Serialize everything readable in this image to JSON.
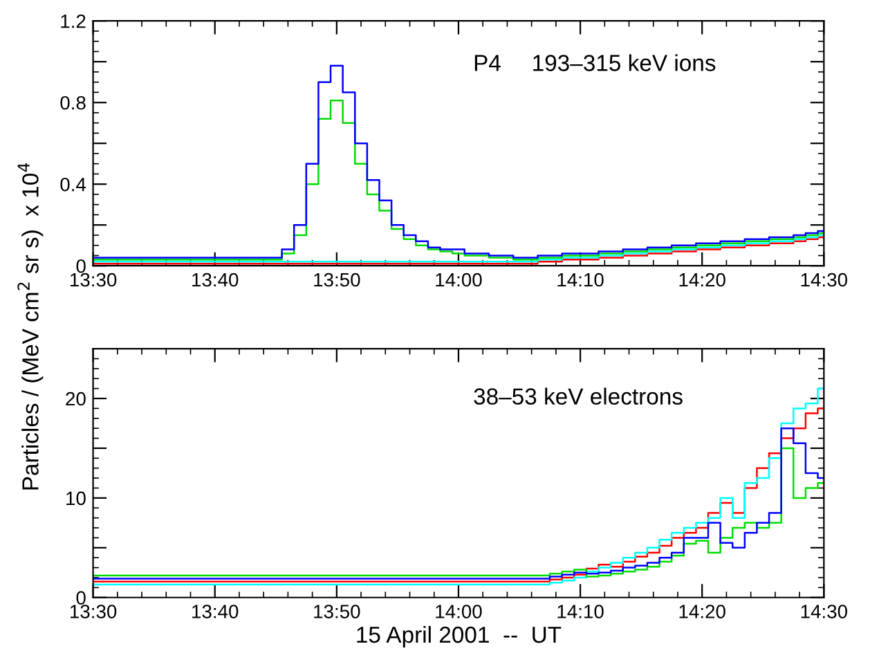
{
  "chart_data": [
    {
      "type": "step",
      "ylabel": "Particles / (MeV cm$^{2}$ sr s)  x 10$^{4}$",
      "annotations": [
        "P4",
        "193–315 keV ions"
      ],
      "x": [
        "2001-04-15T13:30",
        "2001-04-15T13:31",
        "2001-04-15T13:32",
        "2001-04-15T13:33",
        "2001-04-15T13:34",
        "2001-04-15T13:35",
        "2001-04-15T13:36",
        "2001-04-15T13:37",
        "2001-04-15T13:38",
        "2001-04-15T13:39",
        "2001-04-15T13:40",
        "2001-04-15T13:41",
        "2001-04-15T13:42",
        "2001-04-15T13:43",
        "2001-04-15T13:44",
        "2001-04-15T13:45",
        "2001-04-15T13:46",
        "2001-04-15T13:47",
        "2001-04-15T13:48",
        "2001-04-15T13:49",
        "2001-04-15T13:50",
        "2001-04-15T13:51",
        "2001-04-15T13:52",
        "2001-04-15T13:53",
        "2001-04-15T13:54",
        "2001-04-15T13:55",
        "2001-04-15T13:56",
        "2001-04-15T13:57",
        "2001-04-15T13:58",
        "2001-04-15T13:59",
        "2001-04-15T14:00",
        "2001-04-15T14:01",
        "2001-04-15T14:02",
        "2001-04-15T14:03",
        "2001-04-15T14:04",
        "2001-04-15T14:05",
        "2001-04-15T14:06",
        "2001-04-15T14:07",
        "2001-04-15T14:08",
        "2001-04-15T14:09",
        "2001-04-15T14:10",
        "2001-04-15T14:11",
        "2001-04-15T14:12",
        "2001-04-15T14:13",
        "2001-04-15T14:14",
        "2001-04-15T14:15",
        "2001-04-15T14:16",
        "2001-04-15T14:17",
        "2001-04-15T14:18",
        "2001-04-15T14:19",
        "2001-04-15T14:20",
        "2001-04-15T14:21",
        "2001-04-15T14:22",
        "2001-04-15T14:23",
        "2001-04-15T14:24",
        "2001-04-15T14:25",
        "2001-04-15T14:26",
        "2001-04-15T14:27",
        "2001-04-15T14:28",
        "2001-04-15T14:29",
        "2001-04-15T14:30"
      ],
      "series": [
        {
          "color": "#ff0000",
          "values": [
            0.01,
            0.01,
            0.01,
            0.01,
            0.01,
            0.01,
            0.01,
            0.01,
            0.01,
            0.01,
            0.01,
            0.01,
            0.01,
            0.01,
            0.01,
            0.01,
            0.01,
            0.01,
            0.01,
            0.01,
            0.01,
            0.01,
            0.01,
            0.01,
            0.01,
            0.01,
            0.01,
            0.01,
            0.01,
            0.01,
            0.01,
            0.01,
            0.01,
            0.01,
            0.01,
            0.01,
            0.01,
            0.02,
            0.02,
            0.03,
            0.03,
            0.03,
            0.04,
            0.04,
            0.05,
            0.05,
            0.06,
            0.06,
            0.07,
            0.07,
            0.08,
            0.08,
            0.09,
            0.09,
            0.1,
            0.1,
            0.11,
            0.11,
            0.12,
            0.13,
            0.14
          ]
        },
        {
          "color": "#00ffff",
          "values": [
            0.02,
            0.02,
            0.02,
            0.02,
            0.02,
            0.02,
            0.02,
            0.02,
            0.02,
            0.02,
            0.02,
            0.02,
            0.02,
            0.02,
            0.02,
            0.02,
            0.02,
            0.02,
            0.02,
            0.02,
            0.02,
            0.02,
            0.02,
            0.02,
            0.02,
            0.02,
            0.02,
            0.02,
            0.02,
            0.02,
            0.02,
            0.02,
            0.02,
            0.02,
            0.02,
            0.02,
            0.02,
            0.03,
            0.03,
            0.04,
            0.04,
            0.04,
            0.05,
            0.05,
            0.06,
            0.06,
            0.07,
            0.07,
            0.08,
            0.08,
            0.09,
            0.09,
            0.1,
            0.1,
            0.11,
            0.11,
            0.12,
            0.12,
            0.13,
            0.14,
            0.15
          ]
        },
        {
          "color": "#00dd00",
          "values": [
            0.03,
            0.03,
            0.03,
            0.03,
            0.03,
            0.03,
            0.03,
            0.03,
            0.03,
            0.03,
            0.03,
            0.03,
            0.03,
            0.03,
            0.03,
            0.03,
            0.06,
            0.15,
            0.4,
            0.72,
            0.81,
            0.7,
            0.5,
            0.35,
            0.27,
            0.18,
            0.13,
            0.1,
            0.08,
            0.07,
            0.06,
            0.05,
            0.05,
            0.04,
            0.04,
            0.03,
            0.03,
            0.04,
            0.04,
            0.05,
            0.05,
            0.05,
            0.06,
            0.06,
            0.07,
            0.07,
            0.08,
            0.08,
            0.09,
            0.09,
            0.1,
            0.1,
            0.11,
            0.11,
            0.12,
            0.12,
            0.13,
            0.13,
            0.14,
            0.15,
            0.16
          ]
        },
        {
          "color": "#0000ff",
          "values": [
            0.04,
            0.04,
            0.04,
            0.04,
            0.04,
            0.04,
            0.04,
            0.04,
            0.04,
            0.04,
            0.04,
            0.04,
            0.04,
            0.04,
            0.04,
            0.04,
            0.08,
            0.2,
            0.5,
            0.9,
            0.98,
            0.85,
            0.6,
            0.42,
            0.32,
            0.2,
            0.15,
            0.12,
            0.09,
            0.08,
            0.08,
            0.06,
            0.06,
            0.05,
            0.05,
            0.04,
            0.04,
            0.05,
            0.05,
            0.06,
            0.06,
            0.06,
            0.07,
            0.07,
            0.08,
            0.08,
            0.09,
            0.09,
            0.1,
            0.1,
            0.11,
            0.11,
            0.12,
            0.12,
            0.13,
            0.13,
            0.14,
            0.14,
            0.15,
            0.16,
            0.17
          ]
        }
      ],
      "xlim": [
        "2001-04-15T13:30",
        "2001-04-15T14:30"
      ],
      "xticks": [
        {
          "value": "2001-04-15T13:30",
          "label": "13:30"
        },
        {
          "value": "2001-04-15T13:40",
          "label": "13:40"
        },
        {
          "value": "2001-04-15T13:50",
          "label": "13:50"
        },
        {
          "value": "2001-04-15T14:00",
          "label": "14:00"
        },
        {
          "value": "2001-04-15T14:10",
          "label": "14:10"
        },
        {
          "value": "2001-04-15T14:20",
          "label": "14:20"
        },
        {
          "value": "2001-04-15T14:30",
          "label": "14:30"
        }
      ],
      "ylim": [
        0,
        1.2
      ],
      "yticks": [
        0,
        {
          "value": 0.2,
          "label": null
        },
        0.4,
        {
          "value": 0.6,
          "label": null
        },
        0.8,
        {
          "value": 1.0,
          "label": null
        },
        1.2
      ],
      "grid": false,
      "legend": false
    },
    {
      "type": "step",
      "xlabel": "15 April 2001  --  UT",
      "annotations": [
        "38–53 keV electrons"
      ],
      "x": [
        "2001-04-15T13:30",
        "2001-04-15T13:31",
        "2001-04-15T13:32",
        "2001-04-15T13:33",
        "2001-04-15T13:34",
        "2001-04-15T13:35",
        "2001-04-15T13:36",
        "2001-04-15T13:37",
        "2001-04-15T13:38",
        "2001-04-15T13:39",
        "2001-04-15T13:40",
        "2001-04-15T13:41",
        "2001-04-15T13:42",
        "2001-04-15T13:43",
        "2001-04-15T13:44",
        "2001-04-15T13:45",
        "2001-04-15T13:46",
        "2001-04-15T13:47",
        "2001-04-15T13:48",
        "2001-04-15T13:49",
        "2001-04-15T13:50",
        "2001-04-15T13:51",
        "2001-04-15T13:52",
        "2001-04-15T13:53",
        "2001-04-15T13:54",
        "2001-04-15T13:55",
        "2001-04-15T13:56",
        "2001-04-15T13:57",
        "2001-04-15T13:58",
        "2001-04-15T13:59",
        "2001-04-15T14:00",
        "2001-04-15T14:01",
        "2001-04-15T14:02",
        "2001-04-15T14:03",
        "2001-04-15T14:04",
        "2001-04-15T14:05",
        "2001-04-15T14:06",
        "2001-04-15T14:07",
        "2001-04-15T14:08",
        "2001-04-15T14:09",
        "2001-04-15T14:10",
        "2001-04-15T14:11",
        "2001-04-15T14:12",
        "2001-04-15T14:13",
        "2001-04-15T14:14",
        "2001-04-15T14:15",
        "2001-04-15T14:16",
        "2001-04-15T14:17",
        "2001-04-15T14:18",
        "2001-04-15T14:19",
        "2001-04-15T14:20",
        "2001-04-15T14:21",
        "2001-04-15T14:22",
        "2001-04-15T14:23",
        "2001-04-15T14:24",
        "2001-04-15T14:25",
        "2001-04-15T14:26",
        "2001-04-15T14:27",
        "2001-04-15T14:28",
        "2001-04-15T14:29",
        "2001-04-15T14:30"
      ],
      "series": [
        {
          "color": "#ff0000",
          "values": [
            1.6,
            1.6,
            1.6,
            1.6,
            1.6,
            1.6,
            1.6,
            1.6,
            1.6,
            1.6,
            1.6,
            1.6,
            1.6,
            1.6,
            1.6,
            1.6,
            1.6,
            1.6,
            1.6,
            1.6,
            1.6,
            1.6,
            1.6,
            1.6,
            1.6,
            1.6,
            1.6,
            1.6,
            1.6,
            1.6,
            1.6,
            1.6,
            1.6,
            1.6,
            1.6,
            1.6,
            1.6,
            1.6,
            1.8,
            2.0,
            2.3,
            2.9,
            3.3,
            3.1,
            3.6,
            4.1,
            4.5,
            5.2,
            6.0,
            6.5,
            7.0,
            8.5,
            9.5,
            8.5,
            11,
            13,
            14.5,
            16,
            17,
            18.5,
            19
          ]
        },
        {
          "color": "#00ffff",
          "values": [
            1.3,
            1.3,
            1.3,
            1.3,
            1.3,
            1.3,
            1.3,
            1.3,
            1.3,
            1.3,
            1.3,
            1.3,
            1.3,
            1.3,
            1.3,
            1.3,
            1.3,
            1.3,
            1.3,
            1.3,
            1.3,
            1.3,
            1.3,
            1.3,
            1.3,
            1.3,
            1.3,
            1.3,
            1.3,
            1.3,
            1.3,
            1.3,
            1.3,
            1.3,
            1.3,
            1.3,
            1.3,
            1.3,
            1.5,
            1.7,
            2.0,
            2.6,
            3.0,
            3.5,
            4.0,
            4.5,
            5.0,
            5.8,
            6.5,
            7.0,
            7.5,
            8.0,
            10,
            8.0,
            11.5,
            12,
            14,
            17.5,
            19,
            19.5,
            21
          ]
        },
        {
          "color": "#00dd00",
          "values": [
            2.2,
            2.2,
            2.2,
            2.2,
            2.2,
            2.2,
            2.2,
            2.2,
            2.2,
            2.2,
            2.2,
            2.2,
            2.2,
            2.2,
            2.2,
            2.2,
            2.2,
            2.2,
            2.2,
            2.2,
            2.2,
            2.2,
            2.2,
            2.2,
            2.2,
            2.2,
            2.2,
            2.2,
            2.2,
            2.2,
            2.2,
            2.2,
            2.2,
            2.2,
            2.2,
            2.2,
            2.2,
            2.2,
            2.4,
            2.6,
            2.8,
            2.1,
            2.2,
            2.4,
            2.6,
            2.8,
            3.1,
            3.6,
            4.2,
            5.4,
            5.7,
            4.5,
            6.0,
            7.0,
            7.5,
            7.0,
            7.5,
            15,
            10,
            11,
            11.5
          ]
        },
        {
          "color": "#0000ff",
          "values": [
            1.9,
            1.9,
            1.9,
            1.9,
            1.9,
            1.9,
            1.9,
            1.9,
            1.9,
            1.9,
            1.9,
            1.9,
            1.9,
            1.9,
            1.9,
            1.9,
            1.9,
            1.9,
            1.9,
            1.9,
            1.9,
            1.9,
            1.9,
            1.9,
            1.9,
            1.9,
            1.9,
            1.9,
            1.9,
            1.9,
            1.9,
            1.9,
            1.9,
            1.9,
            1.9,
            1.9,
            1.9,
            1.9,
            2.1,
            2.3,
            2.5,
            2.4,
            2.5,
            2.7,
            3.0,
            3.2,
            3.5,
            4.0,
            4.5,
            6.0,
            6.0,
            7.5,
            5.5,
            5.0,
            6.5,
            7.5,
            8.5,
            17,
            15.5,
            12.5,
            12
          ]
        }
      ],
      "xlim": [
        "2001-04-15T13:30",
        "2001-04-15T14:30"
      ],
      "xticks": [
        {
          "value": "2001-04-15T13:30",
          "label": "13:30"
        },
        {
          "value": "2001-04-15T13:40",
          "label": "13:40"
        },
        {
          "value": "2001-04-15T13:50",
          "label": "13:50"
        },
        {
          "value": "2001-04-15T14:00",
          "label": "14:00"
        },
        {
          "value": "2001-04-15T14:10",
          "label": "14:10"
        },
        {
          "value": "2001-04-15T14:20",
          "label": "14:20"
        },
        {
          "value": "2001-04-15T14:30",
          "label": "14:30"
        }
      ],
      "ylim": [
        0,
        25
      ],
      "yticks": [
        0,
        {
          "value": 5,
          "label": null
        },
        10,
        {
          "value": 15,
          "label": null
        },
        20
      ],
      "grid": false,
      "legend": false
    }
  ]
}
